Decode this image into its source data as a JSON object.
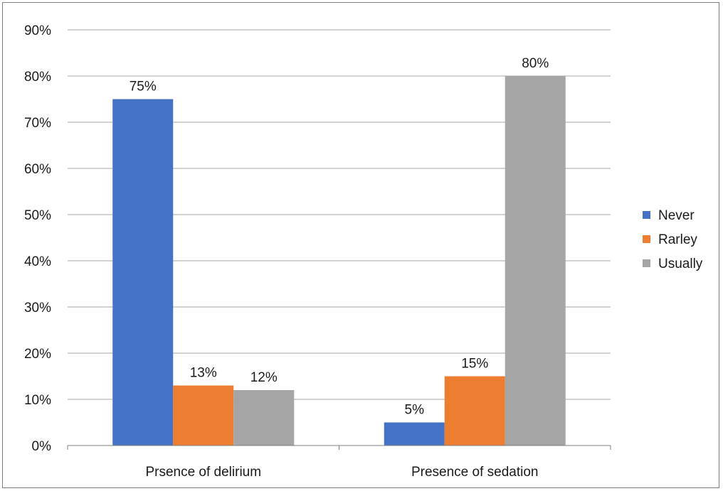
{
  "chart_data": {
    "type": "bar",
    "title": "",
    "xlabel": "",
    "ylabel": "",
    "categories": [
      "Prsence of delirium",
      "Presence of sedation"
    ],
    "series": [
      {
        "name": "Never",
        "color": "#4472c4",
        "values": [
          75,
          5
        ],
        "labels": [
          "75%",
          "5%"
        ]
      },
      {
        "name": "Rarley",
        "color": "#ed7d31",
        "values": [
          13,
          15
        ],
        "labels": [
          "13%",
          "15%"
        ]
      },
      {
        "name": "Usually",
        "color": "#a5a5a5",
        "values": [
          12,
          80
        ],
        "labels": [
          "12%",
          "80%"
        ]
      }
    ],
    "ylim": [
      0,
      90
    ],
    "y_ticks": [
      0,
      10,
      20,
      30,
      40,
      50,
      60,
      70,
      80,
      90
    ],
    "y_tick_labels": [
      "0%",
      "10%",
      "20%",
      "30%",
      "40%",
      "50%",
      "60%",
      "70%",
      "80%",
      "90%"
    ],
    "grid": true,
    "legend_position": "right",
    "gridline_color": "#a6a6a6",
    "axis_color": "#7f7f7f"
  }
}
